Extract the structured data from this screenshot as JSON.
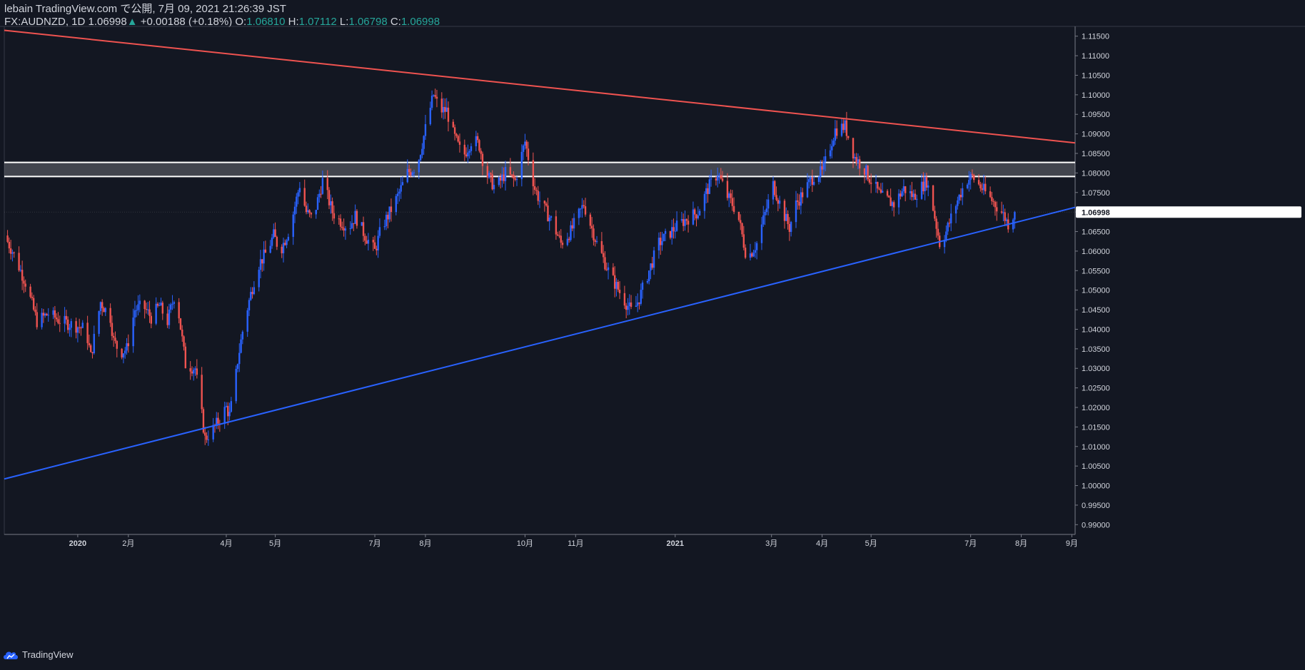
{
  "header": {
    "publisher": "lebain TradingView.com で公開, 7月 09, 2021 21:26:39 JST",
    "symbol": "FX:AUDNZD, 1D",
    "last": "1.06998",
    "change_arrow": "▲",
    "change": "+0.00188 (+0.18%)",
    "o_label": "O:",
    "o_value": "1.06810",
    "h_label": "H:",
    "h_value": "1.07112",
    "l_label": "L:",
    "l_value": "1.06798",
    "c_label": "C:",
    "c_value": "1.06998"
  },
  "footer": {
    "brand": "TradingView"
  },
  "colors": {
    "background": "#131722",
    "up": "#2962ff",
    "down": "#ef5350",
    "resistance": "#ef5350",
    "support": "#2962ff",
    "zone_line": "#ffffff",
    "axis_text": "#d1d4dc",
    "grid": "#2a2e39",
    "price_tag_bg": "#ffffff",
    "price_tag_text": "#131722"
  },
  "chart_data": {
    "type": "candlestick",
    "symbol": "FX:AUDNZD",
    "timeframe": "1D",
    "ylim": [
      0.9875,
      1.1175
    ],
    "y_ticks": [
      "1.11500",
      "1.11000",
      "1.10500",
      "1.10000",
      "1.09500",
      "1.09000",
      "1.08500",
      "1.08000",
      "1.07500",
      "1.07000",
      "1.06500",
      "1.06000",
      "1.05500",
      "1.05000",
      "1.04500",
      "1.04000",
      "1.03500",
      "1.03000",
      "1.02500",
      "1.02000",
      "1.01500",
      "1.01000",
      "1.00500",
      "1.00000",
      "0.99500",
      "0.99000"
    ],
    "y_tick_values": [
      1.115,
      1.11,
      1.105,
      1.1,
      1.095,
      1.09,
      1.085,
      1.08,
      1.075,
      1.07,
      1.065,
      1.06,
      1.055,
      1.05,
      1.045,
      1.04,
      1.035,
      1.03,
      1.025,
      1.02,
      1.015,
      1.01,
      1.005,
      1.0,
      0.995,
      0.99
    ],
    "x_ticks": [
      {
        "label": "2020",
        "day": 0,
        "bold": true
      },
      {
        "label": "2月",
        "day": 31
      },
      {
        "label": "4月",
        "day": 91
      },
      {
        "label": "5月",
        "day": 121
      },
      {
        "label": "7月",
        "day": 182
      },
      {
        "label": "8月",
        "day": 213
      },
      {
        "label": "10月",
        "day": 274
      },
      {
        "label": "11月",
        "day": 305
      },
      {
        "label": "2021",
        "day": 366,
        "bold": true
      },
      {
        "label": "3月",
        "day": 425
      },
      {
        "label": "4月",
        "day": 456
      },
      {
        "label": "5月",
        "day": 486
      },
      {
        "label": "7月",
        "day": 547
      },
      {
        "label": "8月",
        "day": 578
      },
      {
        "label": "9月",
        "day": 609
      }
    ],
    "x_domain_days": [
      -45,
      611
    ],
    "last_price": 1.06998,
    "last_price_label": "1.06998",
    "zone": {
      "top": 1.0827,
      "bottom": 1.0791
    },
    "resistance_line": {
      "from": {
        "day": -45,
        "price": 1.1165
      },
      "to": {
        "day": 611,
        "price": 1.0877
      }
    },
    "support_line": {
      "from": {
        "day": -45,
        "price": 1.0017
      },
      "to": {
        "day": 611,
        "price": 1.0712
      }
    },
    "price_path_days": [
      -45,
      -40,
      -32,
      -25,
      -18,
      -10,
      -2,
      5,
      8,
      14,
      20,
      22,
      26,
      30,
      35,
      40,
      45,
      50,
      55,
      60,
      66,
      72,
      78,
      84,
      91,
      93,
      96,
      98,
      102,
      106,
      110,
      116,
      120,
      124,
      130,
      136,
      140,
      144,
      150,
      156,
      160,
      166,
      170,
      176,
      182,
      186,
      190,
      196,
      202,
      208,
      215,
      218,
      222,
      226,
      230,
      236,
      242,
      246,
      250,
      256,
      262,
      268,
      274,
      280,
      284,
      290,
      296,
      302,
      310,
      318,
      326,
      334,
      340,
      344,
      350,
      356,
      366,
      372,
      380,
      386,
      392,
      398,
      404,
      410,
      416,
      420,
      426,
      432,
      436,
      440,
      446,
      452,
      456,
      464,
      470,
      476,
      482,
      486,
      492,
      500,
      506,
      512,
      520,
      524,
      528,
      532,
      538,
      544,
      548,
      554,
      560,
      566,
      570,
      574
    ],
    "price_path_values": [
      1.064,
      1.06,
      1.052,
      1.042,
      1.044,
      1.042,
      1.041,
      1.04,
      1.033,
      1.047,
      1.043,
      1.037,
      1.034,
      1.035,
      1.045,
      1.046,
      1.043,
      1.046,
      1.042,
      1.05,
      1.031,
      1.03,
      1.012,
      1.015,
      1.02,
      1.018,
      1.025,
      1.032,
      1.042,
      1.049,
      1.056,
      1.06,
      1.064,
      1.06,
      1.066,
      1.077,
      1.07,
      1.068,
      1.078,
      1.07,
      1.068,
      1.066,
      1.069,
      1.064,
      1.06,
      1.066,
      1.069,
      1.074,
      1.08,
      1.082,
      1.095,
      1.1,
      1.096,
      1.096,
      1.09,
      1.084,
      1.089,
      1.087,
      1.08,
      1.076,
      1.08,
      1.078,
      1.088,
      1.076,
      1.072,
      1.068,
      1.062,
      1.065,
      1.072,
      1.062,
      1.054,
      1.048,
      1.044,
      1.048,
      1.055,
      1.062,
      1.066,
      1.068,
      1.07,
      1.076,
      1.08,
      1.074,
      1.07,
      1.058,
      1.062,
      1.068,
      1.077,
      1.07,
      1.066,
      1.072,
      1.076,
      1.08,
      1.08,
      1.091,
      1.092,
      1.084,
      1.081,
      1.078,
      1.074,
      1.072,
      1.076,
      1.074,
      1.078,
      1.071,
      1.062,
      1.065,
      1.072,
      1.078,
      1.079,
      1.076,
      1.073,
      1.07,
      1.067,
      1.07
    ]
  }
}
